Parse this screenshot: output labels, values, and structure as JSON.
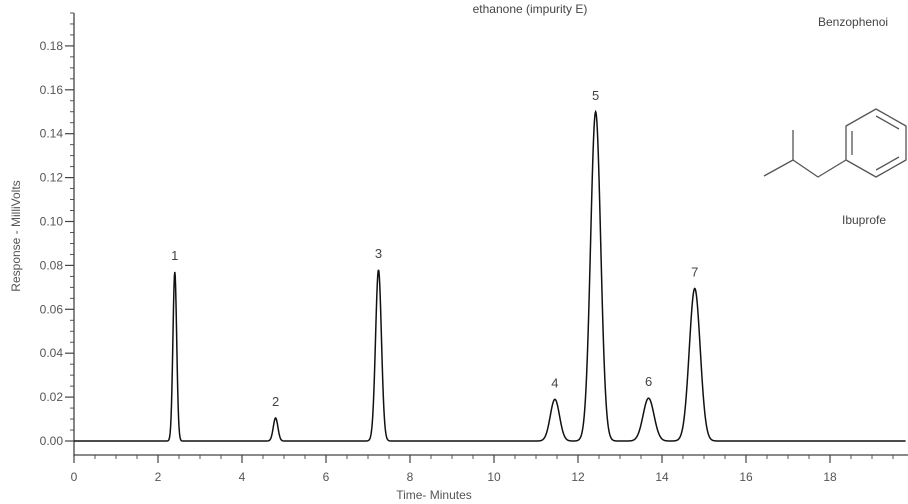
{
  "chart_data": {
    "type": "line",
    "xlabel": "Time- Minutes",
    "ylabel": "Response - MilliVolts",
    "xlim": [
      0,
      19.8
    ],
    "ylim": [
      -0.007,
      0.195
    ],
    "x_ticks": [
      0,
      2,
      4,
      6,
      8,
      10,
      12,
      14,
      16,
      18
    ],
    "y_ticks": [
      0.0,
      0.02,
      0.04,
      0.06,
      0.08,
      0.1,
      0.12,
      0.14,
      0.16,
      0.18
    ],
    "y_tick_labels": [
      "0.00",
      "0.02",
      "0.04",
      "0.06",
      "0.08",
      "0.10",
      "0.12",
      "0.14",
      "0.16",
      "0.18"
    ],
    "grid": false,
    "baseline": 0.0,
    "peaks": [
      {
        "label": "1",
        "x": 2.4,
        "y": 0.077
      },
      {
        "label": "2",
        "x": 4.8,
        "y": 0.0105
      },
      {
        "label": "3",
        "x": 7.25,
        "y": 0.078
      },
      {
        "label": "4",
        "x": 11.45,
        "y": 0.019
      },
      {
        "label": "5",
        "x": 12.42,
        "y": 0.15
      },
      {
        "label": "6",
        "x": 13.68,
        "y": 0.0195
      },
      {
        "label": "7",
        "x": 14.78,
        "y": 0.0695
      }
    ]
  },
  "annotations": {
    "impurity_e": "ethanone (impurity E)",
    "benzophenone": "Benzophenoi",
    "ibuprofen": "Ibuprofe"
  },
  "colors": {
    "trace": "#111111",
    "axis": "#444444",
    "structure": "#555555",
    "text": "#555555"
  }
}
